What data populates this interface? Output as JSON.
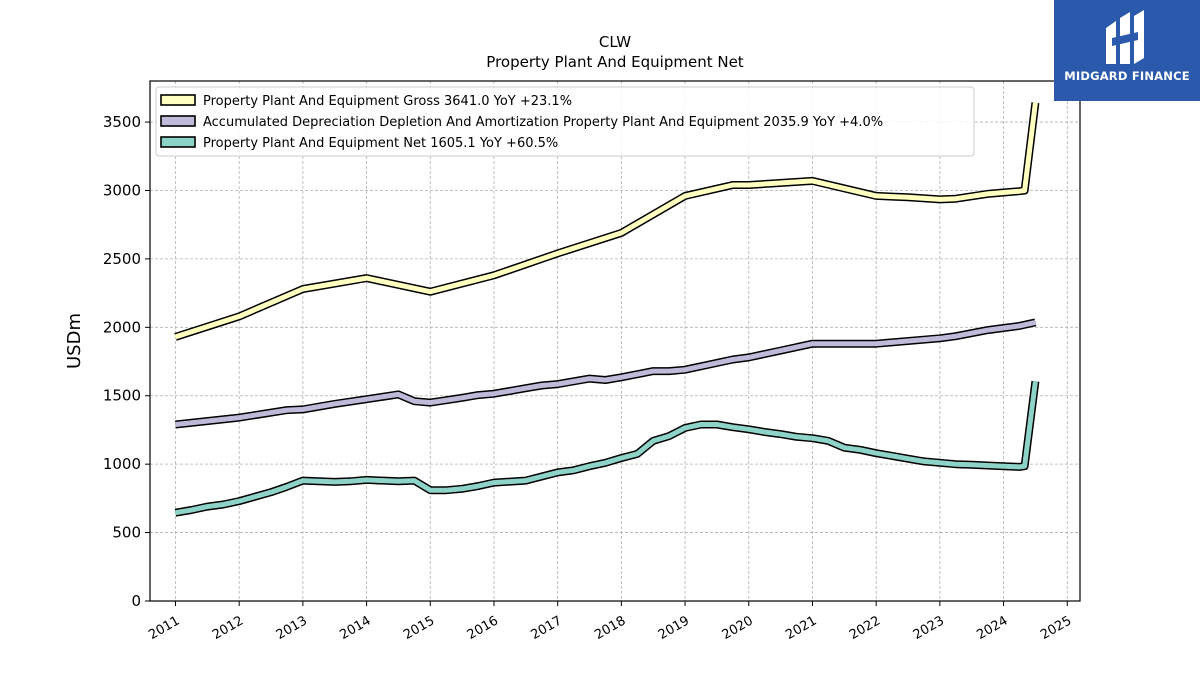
{
  "brand": {
    "name": "MIDGARD FINANCE",
    "bg_color": "#2b5aad",
    "icon": "midgard-logo-icon"
  },
  "chart_data": {
    "type": "line",
    "title": "CLW",
    "subtitle": "Property Plant And Equipment Net",
    "ylabel": "USDm",
    "xlabel": "",
    "xlim": [
      2010.6,
      2025.2
    ],
    "ylim": [
      0,
      3800
    ],
    "yticks": [
      0,
      500,
      1000,
      1500,
      2000,
      2500,
      3000,
      3500
    ],
    "xticks": [
      "2011",
      "2012",
      "2013",
      "2014",
      "2015",
      "2016",
      "2017",
      "2018",
      "2019",
      "2020",
      "2021",
      "2022",
      "2023",
      "2024",
      "2025"
    ],
    "grid": true,
    "legend_position": "top-left",
    "series": [
      {
        "name": "Property Plant And Equipment Gross",
        "legend_label": "Property Plant And Equipment Gross  3641.0 YoY +23.1%",
        "color": "#ffffbf",
        "points": [
          [
            2011.0,
            1930
          ],
          [
            2012.0,
            2080
          ],
          [
            2013.0,
            2280
          ],
          [
            2014.0,
            2360
          ],
          [
            2015.0,
            2260
          ],
          [
            2016.0,
            2380
          ],
          [
            2017.0,
            2540
          ],
          [
            2018.0,
            2690
          ],
          [
            2019.0,
            2960
          ],
          [
            2019.75,
            3040
          ],
          [
            2020.0,
            3040
          ],
          [
            2021.0,
            3070
          ],
          [
            2022.0,
            2960
          ],
          [
            2022.5,
            2950
          ],
          [
            2023.0,
            2935
          ],
          [
            2023.25,
            2940
          ],
          [
            2023.75,
            2975
          ],
          [
            2024.0,
            2985
          ],
          [
            2024.25,
            2995
          ],
          [
            2024.33,
            3000
          ],
          [
            2024.5,
            3641
          ]
        ]
      },
      {
        "name": "Accumulated Depreciation Depletion And Amortization Property Plant And Equipment",
        "legend_label": "Accumulated Depreciation Depletion And Amortization Property Plant And Equipment  2035.9 YoY +4.0%",
        "color": "#bebada",
        "points": [
          [
            2011.0,
            1290
          ],
          [
            2012.0,
            1340
          ],
          [
            2012.75,
            1395
          ],
          [
            2013.0,
            1400
          ],
          [
            2013.5,
            1440
          ],
          [
            2014.0,
            1475
          ],
          [
            2014.5,
            1510
          ],
          [
            2014.75,
            1460
          ],
          [
            2015.0,
            1450
          ],
          [
            2015.5,
            1485
          ],
          [
            2015.75,
            1505
          ],
          [
            2016.0,
            1515
          ],
          [
            2016.5,
            1555
          ],
          [
            2016.75,
            1575
          ],
          [
            2017.0,
            1585
          ],
          [
            2017.5,
            1625
          ],
          [
            2017.75,
            1615
          ],
          [
            2018.0,
            1635
          ],
          [
            2018.5,
            1680
          ],
          [
            2018.75,
            1680
          ],
          [
            2019.0,
            1690
          ],
          [
            2019.5,
            1740
          ],
          [
            2019.75,
            1765
          ],
          [
            2020.0,
            1780
          ],
          [
            2020.5,
            1830
          ],
          [
            2021.0,
            1880
          ],
          [
            2022.0,
            1880
          ],
          [
            2023.0,
            1920
          ],
          [
            2023.25,
            1935
          ],
          [
            2023.75,
            1980
          ],
          [
            2024.0,
            1995
          ],
          [
            2024.25,
            2010
          ],
          [
            2024.5,
            2036
          ]
        ]
      },
      {
        "name": "Property Plant And Equipment Net",
        "legend_label": "Property Plant And Equipment Net  1605.1 YoY +60.5%",
        "color": "#8dd3c7",
        "points": [
          [
            2011.0,
            645
          ],
          [
            2011.25,
            665
          ],
          [
            2011.5,
            690
          ],
          [
            2011.75,
            705
          ],
          [
            2012.0,
            730
          ],
          [
            2012.5,
            795
          ],
          [
            2012.75,
            835
          ],
          [
            2013.0,
            880
          ],
          [
            2013.5,
            870
          ],
          [
            2013.75,
            875
          ],
          [
            2014.0,
            885
          ],
          [
            2014.5,
            875
          ],
          [
            2014.75,
            880
          ],
          [
            2015.0,
            810
          ],
          [
            2015.25,
            810
          ],
          [
            2015.5,
            820
          ],
          [
            2015.75,
            840
          ],
          [
            2016.0,
            865
          ],
          [
            2016.5,
            880
          ],
          [
            2016.75,
            910
          ],
          [
            2017.0,
            940
          ],
          [
            2017.25,
            955
          ],
          [
            2017.5,
            985
          ],
          [
            2017.75,
            1010
          ],
          [
            2018.0,
            1045
          ],
          [
            2018.25,
            1075
          ],
          [
            2018.5,
            1170
          ],
          [
            2018.75,
            1205
          ],
          [
            2019.0,
            1265
          ],
          [
            2019.25,
            1290
          ],
          [
            2019.5,
            1290
          ],
          [
            2019.75,
            1270
          ],
          [
            2020.0,
            1255
          ],
          [
            2020.25,
            1235
          ],
          [
            2020.5,
            1220
          ],
          [
            2020.75,
            1200
          ],
          [
            2021.0,
            1190
          ],
          [
            2021.25,
            1170
          ],
          [
            2021.5,
            1120
          ],
          [
            2021.75,
            1105
          ],
          [
            2022.0,
            1080
          ],
          [
            2022.25,
            1060
          ],
          [
            2022.5,
            1040
          ],
          [
            2022.75,
            1020
          ],
          [
            2023.0,
            1010
          ],
          [
            2023.25,
            1000
          ],
          [
            2023.5,
            995
          ],
          [
            2023.75,
            990
          ],
          [
            2024.0,
            985
          ],
          [
            2024.25,
            980
          ],
          [
            2024.33,
            985
          ],
          [
            2024.5,
            1605
          ]
        ]
      }
    ]
  }
}
